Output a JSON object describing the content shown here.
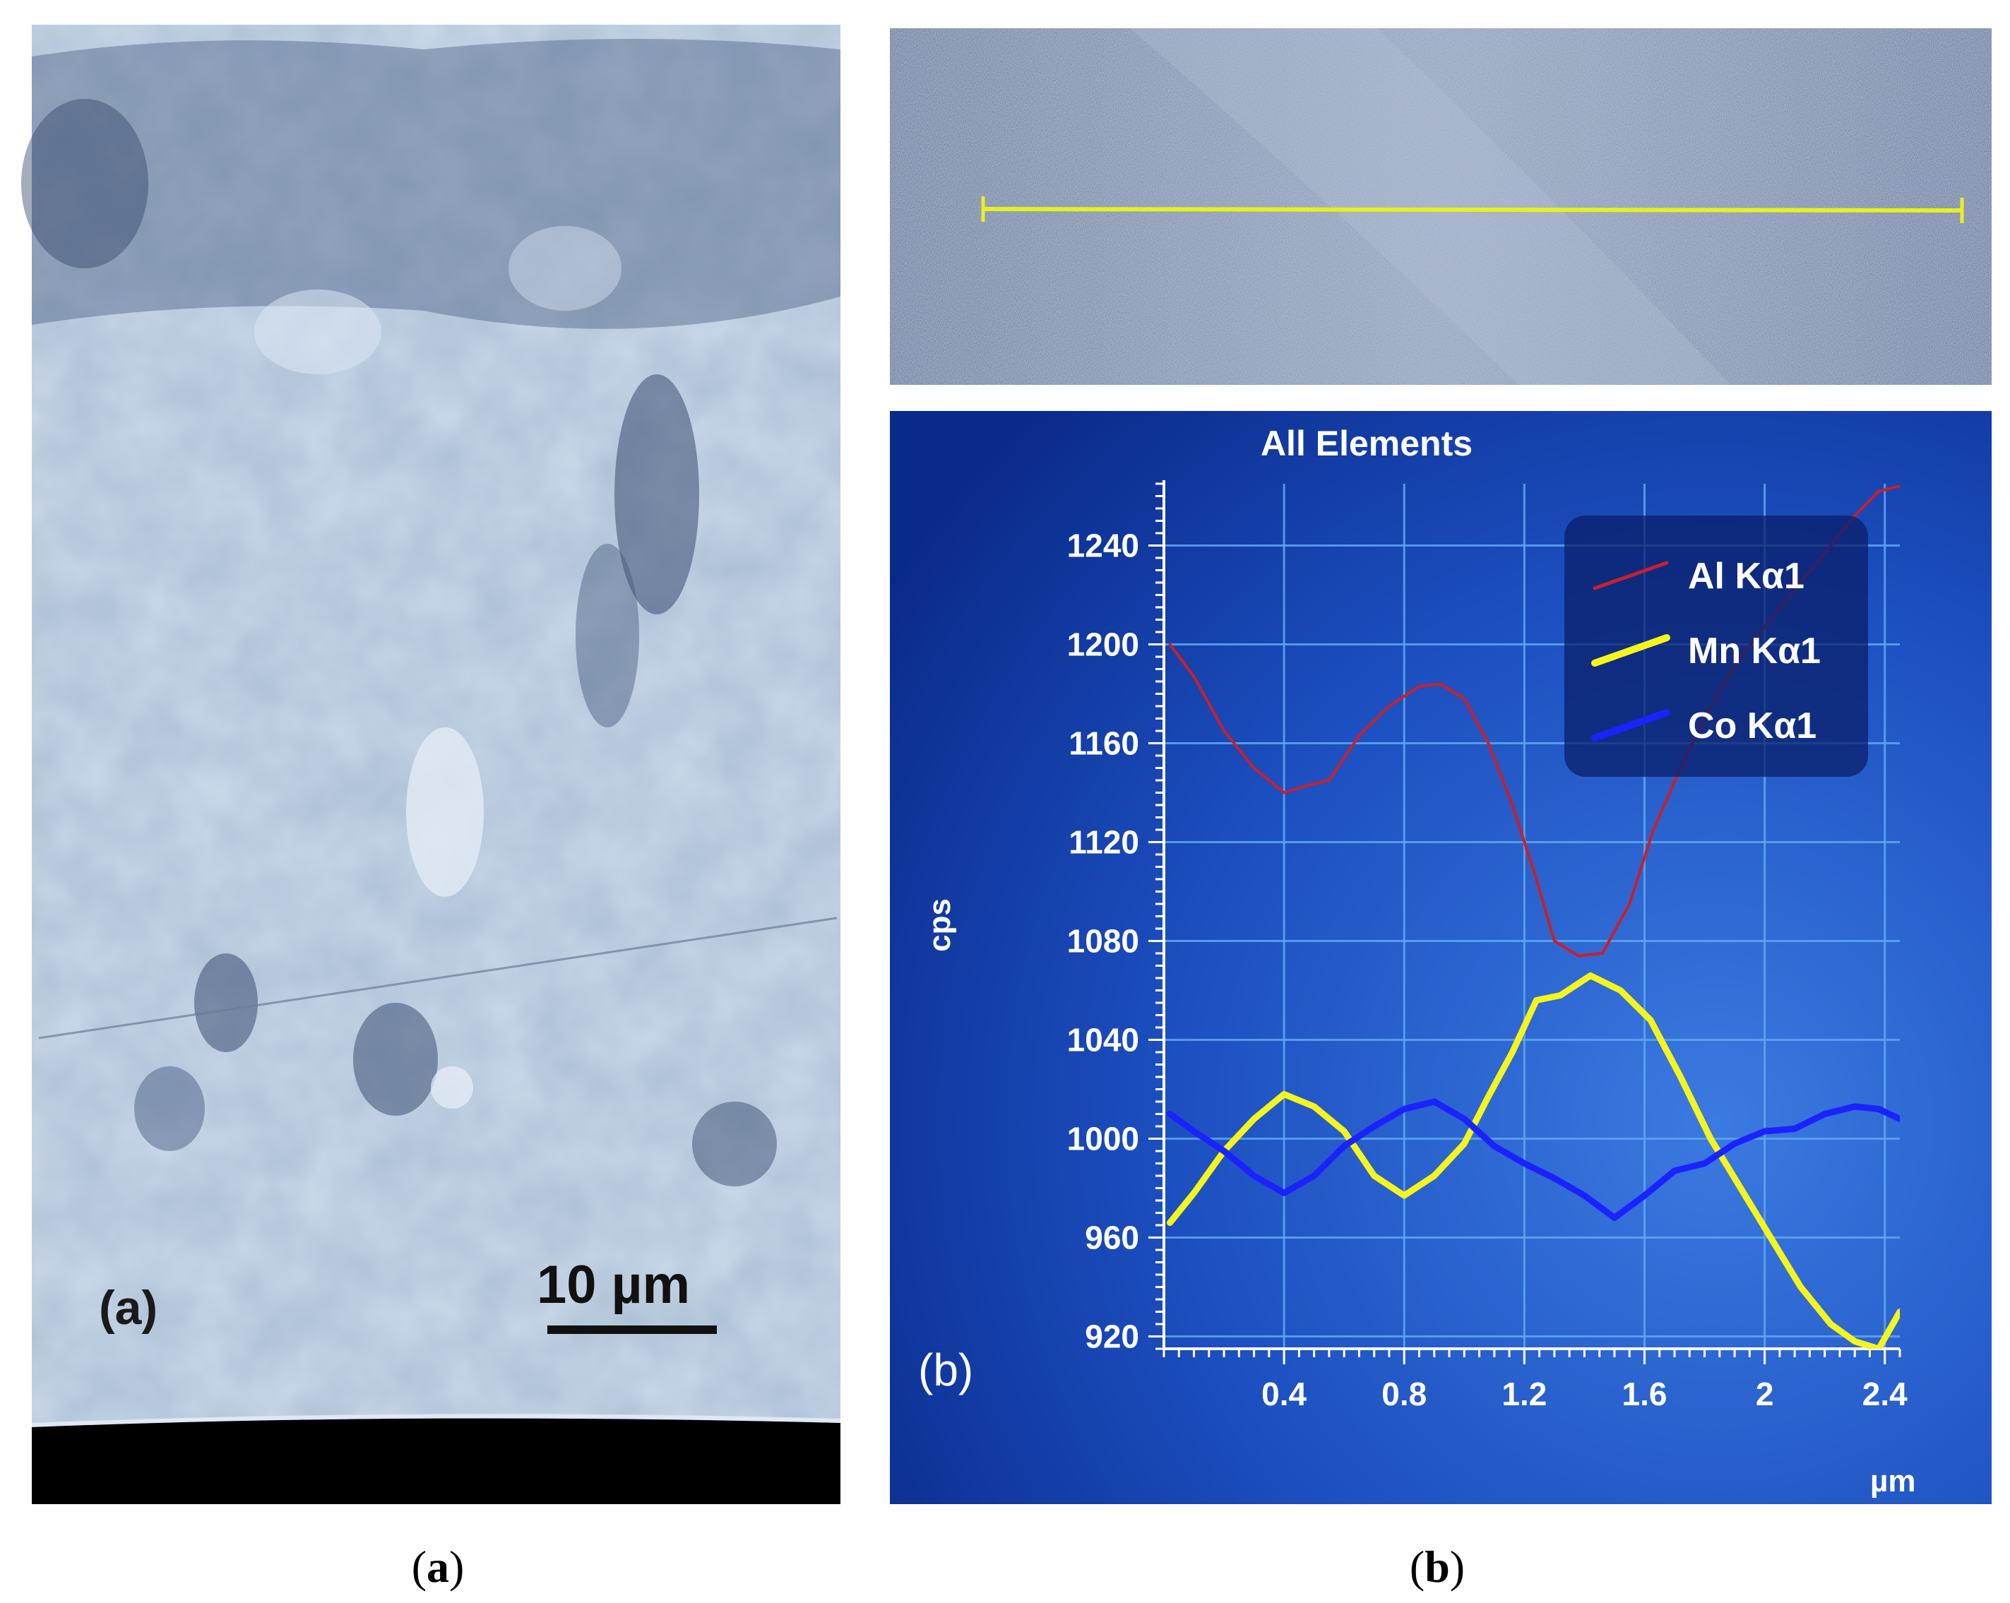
{
  "panel_a": {
    "label": "(a)",
    "scale_bar_label": "10 µm",
    "caption": {
      "open": "(",
      "letter": "a",
      "close": ")"
    }
  },
  "panel_b": {
    "label": "(b)",
    "caption": {
      "open": "(",
      "letter": "b",
      "close": ")"
    }
  },
  "colors": {
    "sem_base": "#a9bcd3",
    "chart_bg_dark": "#0a2a8a",
    "chart_bg_light": "#2a63d6",
    "grid": "#5fa8f0",
    "al": "#c8202c",
    "mn": "#f5f51e",
    "co": "#1a22ff"
  },
  "chart_data": {
    "type": "line",
    "title": "All Elements",
    "xlabel": "µm",
    "ylabel": "cps",
    "xlim": [
      0.0,
      2.45
    ],
    "ylim": [
      915,
      1265
    ],
    "x_ticks": [
      0.4,
      0.8,
      1.2,
      1.6,
      2.0,
      2.4
    ],
    "x_tick_labels": [
      "0.4",
      "0.8",
      "1.2",
      "1.6",
      "2",
      "2.4"
    ],
    "y_ticks": [
      920,
      960,
      1000,
      1040,
      1080,
      1120,
      1160,
      1200,
      1240
    ],
    "grid": true,
    "legend_position": "top-right",
    "series": [
      {
        "name": "Al Kα1",
        "color": "#c8202c",
        "x": [
          0.02,
          0.1,
          0.2,
          0.3,
          0.4,
          0.48,
          0.55,
          0.65,
          0.75,
          0.85,
          0.92,
          1.0,
          1.08,
          1.16,
          1.24,
          1.3,
          1.38,
          1.46,
          1.55,
          1.63,
          1.72,
          1.82,
          1.92,
          2.02,
          2.12,
          2.22,
          2.3,
          2.38,
          2.45
        ],
        "y": [
          1200,
          1187,
          1165,
          1150,
          1140,
          1143,
          1145,
          1163,
          1175,
          1183,
          1184,
          1178,
          1160,
          1135,
          1105,
          1080,
          1074,
          1075,
          1095,
          1125,
          1150,
          1175,
          1195,
          1210,
          1225,
          1240,
          1252,
          1262,
          1264
        ]
      },
      {
        "name": "Mn Kα1",
        "color": "#f5f51e",
        "x": [
          0.02,
          0.1,
          0.2,
          0.3,
          0.4,
          0.5,
          0.6,
          0.7,
          0.8,
          0.9,
          1.0,
          1.08,
          1.16,
          1.24,
          1.32,
          1.42,
          1.52,
          1.62,
          1.72,
          1.82,
          1.92,
          2.02,
          2.12,
          2.22,
          2.3,
          2.38,
          2.45
        ],
        "y": [
          966,
          978,
          995,
          1008,
          1018,
          1013,
          1003,
          985,
          977,
          985,
          998,
          1017,
          1035,
          1056,
          1058,
          1066,
          1060,
          1048,
          1025,
          1000,
          980,
          960,
          940,
          925,
          918,
          915,
          930
        ]
      },
      {
        "name": "Co Kα1",
        "color": "#1a22ff",
        "x": [
          0.02,
          0.1,
          0.2,
          0.3,
          0.4,
          0.5,
          0.6,
          0.7,
          0.8,
          0.9,
          1.0,
          1.1,
          1.2,
          1.3,
          1.4,
          1.5,
          1.6,
          1.7,
          1.8,
          1.9,
          2.0,
          2.1,
          2.2,
          2.3,
          2.38,
          2.45
        ],
        "y": [
          1010,
          1003,
          995,
          985,
          978,
          985,
          997,
          1005,
          1012,
          1015,
          1008,
          997,
          990,
          984,
          977,
          968,
          977,
          987,
          990,
          998,
          1003,
          1004,
          1010,
          1013,
          1012,
          1008
        ]
      }
    ]
  }
}
